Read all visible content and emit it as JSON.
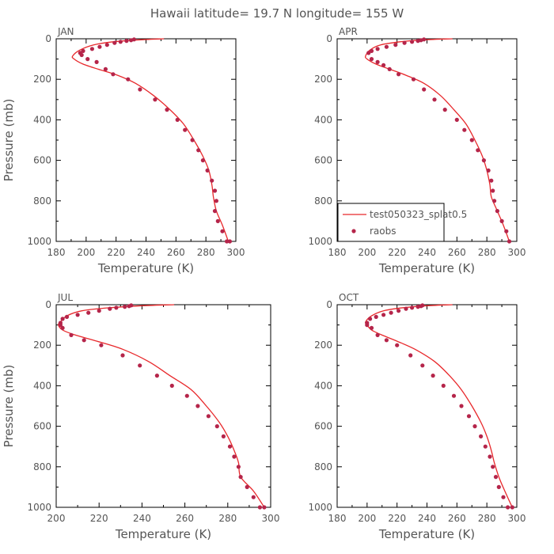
{
  "figure": {
    "title": "Hawaii  latitude= 19.7 N longitude= 155 W"
  },
  "legend": {
    "model_label": "test050323_splat0.5",
    "obs_label": "raobs"
  },
  "colors": {
    "model_line": "#e8282b",
    "obs_marker": "#b5254a",
    "axis": "#000000",
    "text": "#555555"
  },
  "chart_data": [
    {
      "type": "line",
      "panel": "JAN",
      "title": "JAN",
      "xlabel": "Temperature (K)",
      "ylabel": "Pressure (mb)",
      "xlim": [
        180,
        300
      ],
      "ylim": [
        1000,
        0
      ],
      "xticks": [
        180,
        200,
        220,
        240,
        260,
        280,
        300
      ],
      "yticks": [
        0,
        200,
        400,
        600,
        800,
        1000
      ],
      "series": [
        {
          "name": "test050323_splat0.5",
          "kind": "line",
          "x": [
            252,
            236,
            218,
            205,
            196,
            191,
            192,
            198,
            208,
            221,
            233,
            245,
            256,
            265,
            272,
            278,
            282,
            284,
            285,
            287,
            291,
            295
          ],
          "p": [
            0,
            5,
            15,
            30,
            55,
            85,
            100,
            125,
            150,
            180,
            220,
            280,
            350,
            420,
            500,
            580,
            650,
            720,
            780,
            850,
            920,
            1000
          ]
        },
        {
          "name": "raobs",
          "kind": "scatter",
          "x": [
            232,
            230,
            227,
            223,
            219,
            214,
            209,
            204,
            198,
            196,
            197,
            201,
            207,
            213,
            218,
            228,
            236,
            246,
            254,
            261,
            266,
            271,
            275,
            278,
            281,
            284,
            286,
            287,
            286,
            288,
            291,
            294,
            296
          ],
          "p": [
            3,
            7,
            10,
            15,
            20,
            30,
            40,
            50,
            60,
            70,
            80,
            100,
            115,
            150,
            175,
            200,
            250,
            300,
            350,
            400,
            450,
            500,
            550,
            600,
            650,
            700,
            750,
            800,
            850,
            900,
            950,
            1000,
            1000
          ]
        }
      ]
    },
    {
      "type": "line",
      "panel": "APR",
      "title": "APR",
      "xlabel": "Temperature (K)",
      "ylabel": "",
      "xlim": [
        180,
        300
      ],
      "ylim": [
        1000,
        0
      ],
      "xticks": [
        180,
        200,
        220,
        240,
        260,
        280,
        300
      ],
      "yticks": [
        0,
        200,
        400,
        600,
        800,
        1000
      ],
      "series": [
        {
          "name": "test050323_splat0.5",
          "kind": "line",
          "x": [
            257,
            238,
            222,
            209,
            202,
            199,
            200,
            206,
            215,
            226,
            238,
            249,
            258,
            266,
            272,
            277,
            280,
            282,
            283,
            287,
            291,
            295
          ],
          "p": [
            0,
            5,
            15,
            30,
            55,
            85,
            100,
            125,
            150,
            180,
            220,
            280,
            350,
            420,
            500,
            580,
            650,
            720,
            780,
            850,
            920,
            1000
          ]
        },
        {
          "name": "raobs",
          "kind": "scatter",
          "x": [
            238,
            236,
            234,
            230,
            225,
            219,
            213,
            207,
            203,
            201,
            203,
            207,
            211,
            215,
            221,
            231,
            238,
            245,
            252,
            260,
            265,
            270,
            274,
            278,
            281,
            283,
            284,
            285,
            287,
            290,
            293,
            295
          ],
          "p": [
            3,
            7,
            10,
            15,
            20,
            30,
            40,
            50,
            60,
            70,
            100,
            115,
            130,
            150,
            175,
            200,
            250,
            300,
            350,
            400,
            450,
            500,
            550,
            600,
            650,
            700,
            750,
            800,
            850,
            900,
            950,
            1000
          ]
        }
      ]
    },
    {
      "type": "line",
      "panel": "JUL",
      "title": "JUL",
      "xlabel": "Temperature (K)",
      "ylabel": "Pressure (mb)",
      "xlim": [
        200,
        300
      ],
      "ylim": [
        1000,
        0
      ],
      "xticks": [
        200,
        220,
        240,
        260,
        280,
        300
      ],
      "yticks": [
        0,
        200,
        400,
        600,
        800,
        1000
      ],
      "series": [
        {
          "name": "test050323_splat0.5",
          "kind": "line",
          "x": [
            255,
            240,
            225,
            212,
            205,
            202,
            201,
            203,
            209,
            219,
            231,
            243,
            253,
            263,
            270,
            276,
            280,
            283,
            285,
            286,
            292,
            297
          ],
          "p": [
            0,
            5,
            15,
            30,
            55,
            85,
            100,
            125,
            150,
            180,
            220,
            280,
            350,
            420,
            500,
            580,
            650,
            720,
            780,
            850,
            920,
            1000
          ]
        },
        {
          "name": "raobs",
          "kind": "scatter",
          "x": [
            235,
            234,
            232,
            228,
            225,
            220,
            215,
            210,
            205,
            203,
            202,
            202,
            203,
            207,
            213,
            221,
            231,
            239,
            247,
            254,
            261,
            266,
            271,
            275,
            278,
            281,
            283,
            285,
            286,
            289,
            292,
            295,
            297
          ],
          "p": [
            3,
            7,
            10,
            15,
            20,
            30,
            40,
            50,
            60,
            70,
            90,
            100,
            115,
            150,
            175,
            200,
            250,
            300,
            350,
            400,
            450,
            500,
            550,
            600,
            650,
            700,
            750,
            800,
            850,
            900,
            950,
            1000,
            1000
          ]
        }
      ]
    },
    {
      "type": "line",
      "panel": "OCT",
      "title": "OCT",
      "xlabel": "Temperature (K)",
      "ylabel": "",
      "xlim": [
        180,
        300
      ],
      "ylim": [
        1000,
        0
      ],
      "xticks": [
        180,
        200,
        220,
        240,
        260,
        280,
        300
      ],
      "yticks": [
        0,
        200,
        400,
        600,
        800,
        1000
      ],
      "series": [
        {
          "name": "test050323_splat0.5",
          "kind": "line",
          "x": [
            257,
            240,
            224,
            211,
            203,
            199,
            200,
            203,
            210,
            220,
            232,
            245,
            255,
            263,
            270,
            276,
            280,
            283,
            285,
            288,
            292,
            297
          ],
          "p": [
            0,
            5,
            15,
            30,
            55,
            85,
            100,
            125,
            150,
            180,
            220,
            280,
            350,
            420,
            500,
            580,
            650,
            720,
            780,
            850,
            920,
            1000
          ]
        },
        {
          "name": "raobs",
          "kind": "scatter",
          "x": [
            237,
            236,
            234,
            230,
            226,
            221,
            216,
            211,
            206,
            202,
            200,
            200,
            203,
            207,
            213,
            220,
            229,
            237,
            244,
            251,
            258,
            263,
            268,
            272,
            276,
            279,
            282,
            284,
            286,
            288,
            291,
            294,
            297
          ],
          "p": [
            3,
            7,
            10,
            15,
            20,
            30,
            40,
            50,
            60,
            70,
            90,
            100,
            115,
            150,
            175,
            200,
            250,
            300,
            350,
            400,
            450,
            500,
            550,
            600,
            650,
            700,
            750,
            800,
            850,
            900,
            950,
            1000,
            1000
          ]
        }
      ]
    }
  ]
}
